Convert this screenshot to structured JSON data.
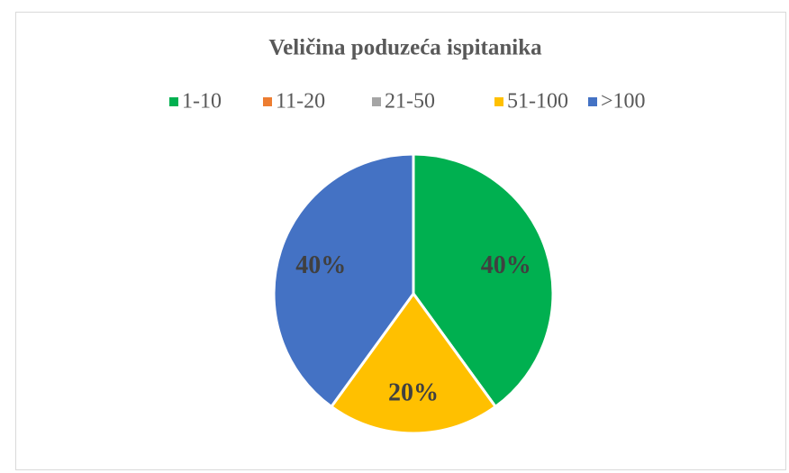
{
  "chart_data": {
    "type": "pie",
    "title": "Veličina poduzeća ispitanika",
    "categories": [
      "1-10",
      "11-20",
      "21-50",
      "51-100",
      ">100"
    ],
    "values": [
      40,
      0,
      0,
      20,
      40
    ],
    "value_labels": [
      "40%",
      null,
      null,
      "20%",
      "40%"
    ],
    "colors": [
      "#00b050",
      "#ed7d31",
      "#a5a5a5",
      "#ffc000",
      "#4472c4"
    ],
    "legend": "top"
  }
}
